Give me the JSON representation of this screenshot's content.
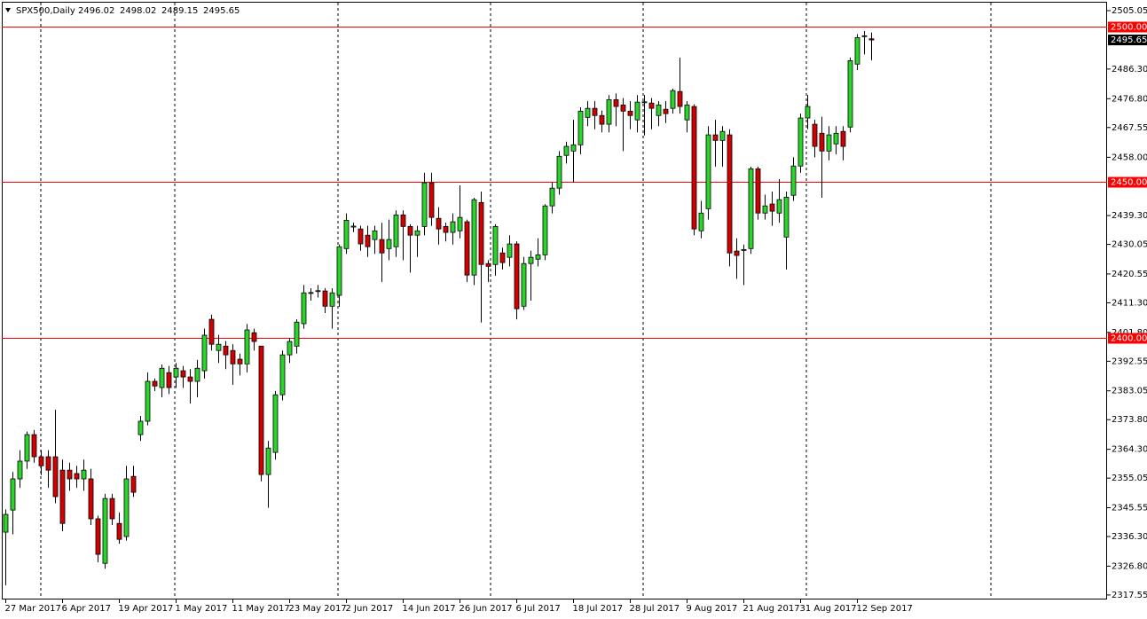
{
  "chart_data": {
    "type": "candlestick",
    "title": "SPX500,Daily",
    "categories": [
      "27 Mar 2017",
      null,
      null,
      null,
      null,
      null,
      null,
      null,
      "6 Apr 2017",
      null,
      null,
      null,
      null,
      null,
      null,
      null,
      "19 Apr 2017",
      null,
      null,
      null,
      null,
      null,
      null,
      null,
      "1 May 2017",
      null,
      null,
      null,
      null,
      null,
      null,
      null,
      "11 May 2017",
      null,
      null,
      null,
      null,
      null,
      null,
      null,
      "23 May 2017",
      null,
      null,
      null,
      null,
      null,
      null,
      null,
      "2 Jun 2017",
      null,
      null,
      null,
      null,
      null,
      null,
      null,
      "14 Jun 2017",
      null,
      null,
      null,
      null,
      null,
      null,
      null,
      "26 Jun 2017",
      null,
      null,
      null,
      null,
      null,
      null,
      null,
      "6 Jul 2017",
      null,
      null,
      null,
      null,
      null,
      null,
      null,
      "18 Jul 2017",
      null,
      null,
      null,
      null,
      null,
      null,
      null,
      "28 Jul 2017",
      null,
      null,
      null,
      null,
      null,
      null,
      null,
      "9 Aug 2017",
      null,
      null,
      null,
      null,
      null,
      null,
      null,
      "21 Aug 2017",
      null,
      null,
      null,
      null,
      null,
      null,
      null,
      "31 Aug 2017",
      null,
      null,
      null,
      null,
      null,
      null,
      null,
      "12 Sep 2017",
      null,
      null
    ],
    "open": [
      2337.7,
      2344.8,
      2354.8,
      2360.5,
      2369.0,
      2361.9,
      2361.9,
      2361.9,
      2357.6,
      2357.6,
      2356.5,
      2354.8,
      2354.8,
      2342.0,
      2327.7,
      2348.5,
      2340.5,
      2336.3,
      2355.6,
      2369.0,
      2373.3,
      2386.1,
      2384.1,
      2388.9,
      2387.5,
      2389.5,
      2387.5,
      2386.1,
      2389.5,
      2406.0,
      2396.0,
      2397.4,
      2396.0,
      2393.2,
      2391.7,
      2401.7,
      2397.4,
      2356.2,
      2363.3,
      2381.8,
      2394.6,
      2397.4,
      2404.6,
      2414.3,
      2415.0,
      2415.1,
      2410.2,
      2413.7,
      2428.7,
      2435.6,
      2435.0,
      2433.0,
      2431.6,
      2431.6,
      2428.7,
      2429.3,
      2439.5,
      2435.8,
      2433.0,
      2435.8,
      2449.8,
      2438.4,
      2435.8,
      2433.9,
      2434.4,
      2437.3,
      2420.2,
      2443.5,
      2423.9,
      2423.6,
      2427.3,
      2425.9,
      2430.2,
      2410.2,
      2423.9,
      2425.3,
      2426.7,
      2442.4,
      2448.1,
      2458.6,
      2460.0,
      2462.0,
      2470.8,
      2473.7,
      2471.4,
      2468.6,
      2476.5,
      2474.8,
      2472.8,
      2470.0,
      2475.5,
      2475.4,
      2471.4,
      2473.4,
      2473.7,
      2479.1,
      2470.0,
      2474.3,
      2434.4,
      2441.5,
      2465.2,
      2463.4,
      2465.2,
      2427.9,
      2428.1,
      2428.7,
      2454.3,
      2440.1,
      2443.0,
      2440.1,
      2432.4,
      2445.8,
      2455.2,
      2470.6,
      2468.6,
      2465.7,
      2460.0,
      2462.3,
      2466.3,
      2467.7,
      2487.9,
      2496.8,
      2496.02
    ],
    "high": [
      2345,
      2357,
      2364,
      2370,
      2370.5,
      2364,
      2364,
      2377,
      2361,
      2360,
      2359,
      2361,
      2358,
      2343,
      2350,
      2350,
      2344,
      2359,
      2359,
      2375,
      2389,
      2387,
      2391.5,
      2391,
      2392,
      2391,
      2390,
      2393,
      2403,
      2407.5,
      2401,
      2399,
      2398,
      2395,
      2404.5,
      2403,
      2397.5,
      2367,
      2383,
      2396,
      2400,
      2406,
      2417,
      2416,
      2417,
      2416,
      2416,
      2430,
      2440,
      2437,
      2436,
      2436,
      2436,
      2437,
      2438,
      2441,
      2441,
      2436.5,
      2436,
      2453,
      2453,
      2442,
      2437,
      2440,
      2449,
      2438,
      2445,
      2447,
      2425,
      2436.5,
      2429,
      2433,
      2431,
      2426,
      2428,
      2432,
      2443,
      2450,
      2460,
      2463,
      2470,
      2474,
      2476,
      2476,
      2473,
      2478,
      2478.5,
      2477,
      2476,
      2478,
      2478,
      2477,
      2476,
      2476,
      2480,
      2490,
      2476,
      2475,
      2444,
      2468,
      2470,
      2468,
      2467,
      2432,
      2430,
      2455,
      2455,
      2446,
      2447,
      2451,
      2447,
      2458,
      2472,
      2478,
      2470,
      2471,
      2468,
      2468,
      2468,
      2490,
      2497.5,
      2498.5,
      2498.02
    ],
    "low": [
      2320.6,
      2337,
      2352,
      2358,
      2360,
      2356,
      2352,
      2347,
      2338,
      2351,
      2352,
      2351,
      2340,
      2328,
      2326,
      2340,
      2334,
      2335,
      2349,
      2367,
      2372,
      2383,
      2381,
      2382,
      2384,
      2384,
      2379,
      2381,
      2387,
      2396,
      2392,
      2390,
      2385,
      2388,
      2389,
      2396,
      2354,
      2345.5,
      2361,
      2380,
      2392,
      2395,
      2403,
      2412,
      2413,
      2408,
      2403,
      2410,
      2427,
      2434,
      2428,
      2426,
      2427,
      2418,
      2425,
      2426,
      2425,
      2421,
      2426,
      2433,
      2436,
      2430,
      2431,
      2430,
      2432,
      2418,
      2417,
      2405,
      2418,
      2420,
      2422,
      2423,
      2406,
      2409,
      2412,
      2423,
      2425,
      2440,
      2446,
      2456,
      2450,
      2459,
      2468,
      2467,
      2466,
      2466,
      2468,
      2460,
      2467,
      2466,
      2465,
      2467,
      2468,
      2469,
      2472,
      2472,
      2466,
      2433,
      2432,
      2438,
      2455,
      2455,
      2423,
      2419,
      2417,
      2427,
      2438,
      2438,
      2436,
      2437,
      2422,
      2444,
      2453,
      2467,
      2458,
      2445,
      2457,
      2459,
      2457,
      2466,
      2486,
      2491,
      2489.15
    ],
    "close": [
      2343.4,
      2354.8,
      2360.5,
      2369.0,
      2361.9,
      2359.0,
      2357.6,
      2349.1,
      2340.5,
      2354.8,
      2354.8,
      2357.6,
      2342.0,
      2330.6,
      2348.5,
      2342.0,
      2335.4,
      2354.8,
      2350.5,
      2373.3,
      2386.1,
      2384.6,
      2390.3,
      2384.1,
      2390.3,
      2387.5,
      2386.1,
      2390.3,
      2400.9,
      2398.0,
      2398.0,
      2394.6,
      2391.7,
      2391.7,
      2402.6,
      2398.9,
      2356.2,
      2364.7,
      2381.8,
      2394.6,
      2398.9,
      2405.1,
      2414.5,
      2414.6,
      2415.2,
      2410.2,
      2414.5,
      2429.3,
      2437.8,
      2435.9,
      2430.2,
      2429.3,
      2434.4,
      2427.3,
      2431.6,
      2439.5,
      2435.8,
      2433.0,
      2434.4,
      2449.8,
      2438.7,
      2435.0,
      2433.9,
      2437.3,
      2438.7,
      2420.2,
      2444.4,
      2423.6,
      2423.0,
      2435.8,
      2424.2,
      2430.2,
      2409.4,
      2423.9,
      2425.9,
      2426.7,
      2442.4,
      2448.1,
      2458.3,
      2461.5,
      2462.0,
      2472.8,
      2473.7,
      2471.4,
      2468.6,
      2476.5,
      2474.3,
      2472.8,
      2471.4,
      2475.7,
      2475.8,
      2473.7,
      2474.8,
      2472.0,
      2479.4,
      2474.3,
      2474.8,
      2435.0,
      2440.1,
      2465.2,
      2463.4,
      2466.3,
      2427.3,
      2426.5,
      2428.4,
      2454.3,
      2440.1,
      2442.4,
      2440.7,
      2444.4,
      2445.2,
      2455.2,
      2470.6,
      2474.3,
      2461.5,
      2460.0,
      2465.2,
      2465.7,
      2461.5,
      2489.0,
      2496.4,
      2497.0,
      2495.65
    ],
    "up_color": "#2bd42b",
    "down_color": "#d10000",
    "ylim": [
      2316.1,
      2507.9
    ],
    "yticks": [
      2505.05,
      {
        "value": 2486.3,
        "label": "2486.30"
      },
      {
        "value": 2476.8,
        "label": "2476.80"
      },
      2467.55,
      {
        "value": 2458,
        "label": "2458.00"
      },
      {
        "value": 2439.3,
        "label": "2439.30"
      },
      2430.05,
      2420.55,
      {
        "value": 2411.3,
        "label": "2411.30"
      },
      {
        "value": 2401.8,
        "label": "2401.80"
      },
      2392.55,
      2383.05,
      {
        "value": 2373.8,
        "label": "2373.80"
      },
      {
        "value": 2364.3,
        "label": "2364.30"
      },
      2355.05,
      2345.55,
      {
        "value": 2336.3,
        "label": "2336.30"
      },
      {
        "value": 2326.8,
        "label": "2326.80"
      },
      2317.55
    ],
    "levels": [
      {
        "value": 2500,
        "label": "2500.00"
      },
      {
        "value": 2450,
        "label": "2450.00"
      },
      {
        "value": 2400,
        "label": "2400.00"
      }
    ],
    "level_color": "#ff0000"
  }
}
